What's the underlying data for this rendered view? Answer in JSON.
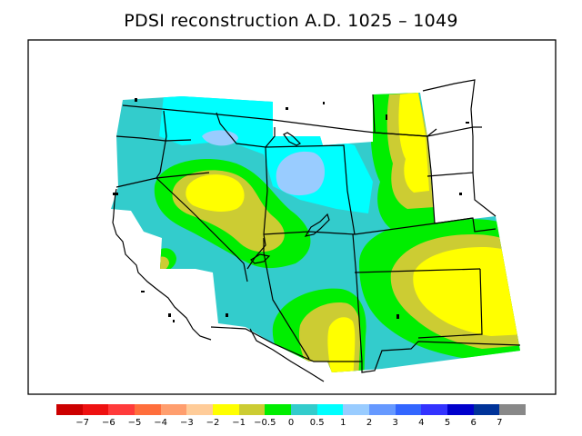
{
  "title": "PDSI reconstruction A.D. 1025 – 1049",
  "legend": {
    "colors": [
      "#cc0000",
      "#ee1111",
      "#ff3b3b",
      "#ff6e3c",
      "#ff9e6e",
      "#ffcc99",
      "#ffff00",
      "#cccc33",
      "#00ee00",
      "#33cccc",
      "#00ffff",
      "#99ccff",
      "#6699ff",
      "#3366ff",
      "#3333ff",
      "#0000cc",
      "#003399",
      "#888888"
    ],
    "labels": [
      "−7",
      "−6",
      "−5",
      "−4",
      "−3",
      "−2",
      "−1",
      "−0.5",
      "0",
      "0.5",
      "1",
      "2",
      "3",
      "4",
      "5",
      "6",
      "7"
    ]
  },
  "palette": {
    "yellow": "#ffff00",
    "olive": "#cccc33",
    "green": "#00ee00",
    "teal": "#33cccc",
    "cyan": "#00ffff",
    "lightblue": "#99ccff"
  }
}
